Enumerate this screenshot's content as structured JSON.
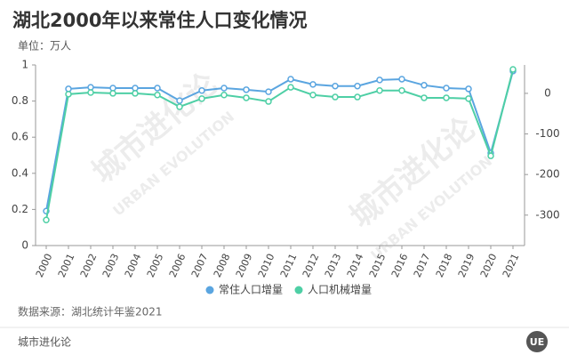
{
  "chart_data": {
    "type": "line",
    "title": "湖北2000年以来常住人口变化情况",
    "subtitle": "单位：万人",
    "source": "数据来源：湖北统计年鉴2021",
    "footer": "城市进化论",
    "logo": "UE",
    "watermark": [
      "城市进化论",
      "URBAN EVOLUTION"
    ],
    "categories": [
      "2000",
      "2001",
      "2002",
      "2003",
      "2004",
      "2005",
      "2006",
      "2007",
      "2008",
      "2009",
      "2010",
      "2011",
      "2012",
      "2013",
      "2014",
      "2015",
      "2016",
      "2017",
      "2018",
      "2019",
      "2020",
      "2021"
    ],
    "ylim": [
      0,
      1
    ],
    "yticks": [
      0,
      0.2,
      0.4,
      0.6,
      0.8,
      1
    ],
    "y2lim": [
      -375,
      70
    ],
    "y2ticks": [
      -300,
      -200,
      -100,
      0
    ],
    "series": [
      {
        "name": "常住人口增量",
        "color": "#5aa5e0",
        "axis": "y2",
        "values": [
          -290,
          11,
          15,
          13,
          13,
          13,
          -18,
          7,
          13,
          9,
          4,
          35,
          22,
          18,
          18,
          33,
          35,
          20,
          13,
          11,
          -147,
          55
        ]
      },
      {
        "name": "人口机械增量",
        "color": "#4ecfa5",
        "axis": "y2",
        "values": [
          -312,
          -2,
          2,
          0,
          0,
          -4,
          -33,
          -13,
          -4,
          -11,
          -20,
          15,
          -4,
          -9,
          -9,
          7,
          7,
          -11,
          -11,
          -13,
          -154,
          59
        ]
      }
    ]
  }
}
